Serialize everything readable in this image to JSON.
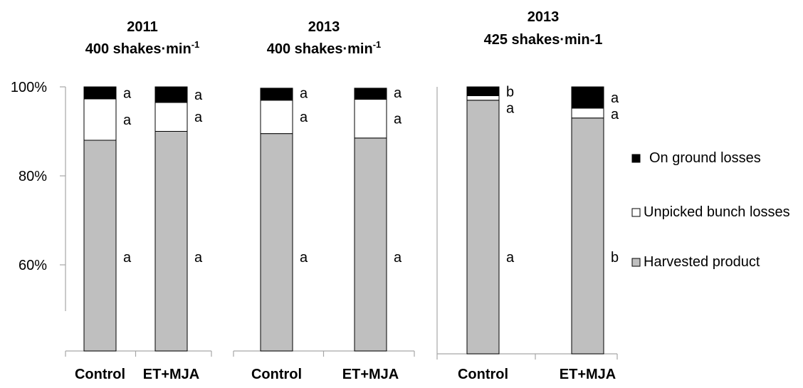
{
  "chart_data": {
    "type": "bar",
    "stacked": true,
    "y_axis": {
      "min": 0.4,
      "max": 1.0,
      "ticks": [
        {
          "value": 0.6,
          "label": "60%"
        },
        {
          "value": 0.8,
          "label": "80%"
        },
        {
          "value": 1.0,
          "label": "100%"
        }
      ]
    },
    "legend": {
      "placement": "right",
      "items": [
        {
          "key": "on_ground",
          "label": "On ground losses",
          "marker": "■",
          "color": "#000000"
        },
        {
          "key": "unpicked",
          "label": "Unpicked bunch losses",
          "marker": "□",
          "color": "#ffffff"
        },
        {
          "key": "harvested",
          "label": "Harvested product",
          "marker": "□",
          "color": "#bfbfbf"
        }
      ]
    },
    "panels": [
      {
        "title_line1": "2011",
        "title_line2": "400 shakes·min",
        "title_sup": "-1",
        "bars": [
          {
            "category": "Control",
            "harvested": 0.88,
            "unpicked": 0.093,
            "on_ground": 0.027,
            "letters": {
              "on_ground": "a",
              "unpicked": "a",
              "harvested": "a"
            }
          },
          {
            "category": "ET+MJA",
            "harvested": 0.9,
            "unpicked": 0.065,
            "on_ground": 0.035,
            "letters": {
              "on_ground": "a",
              "unpicked": "a",
              "harvested": "a"
            }
          }
        ]
      },
      {
        "title_line1": "2013",
        "title_line2": "400 shakes·min",
        "title_sup": "-1",
        "bars": [
          {
            "category": "Control",
            "harvested": 0.895,
            "unpicked": 0.075,
            "on_ground": 0.027,
            "letters": {
              "on_ground": "a",
              "unpicked": "a",
              "harvested": "a"
            }
          },
          {
            "category": "ET+MJA",
            "harvested": 0.885,
            "unpicked": 0.087,
            "on_ground": 0.025,
            "letters": {
              "on_ground": "a",
              "unpicked": "a",
              "harvested": "a"
            }
          }
        ]
      },
      {
        "title_line1": "2013",
        "title_line2": "425 shakes·min-1",
        "title_sup": "",
        "bars": [
          {
            "category": "Control",
            "harvested": 0.97,
            "unpicked": 0.01,
            "on_ground": 0.02,
            "letters": {
              "on_ground": "b",
              "unpicked": "a",
              "harvested": "a"
            }
          },
          {
            "category": "ET+MJA",
            "harvested": 0.93,
            "unpicked": 0.022,
            "on_ground": 0.048,
            "letters": {
              "on_ground": "a",
              "unpicked": "a",
              "harvested": "b"
            }
          }
        ]
      }
    ]
  }
}
